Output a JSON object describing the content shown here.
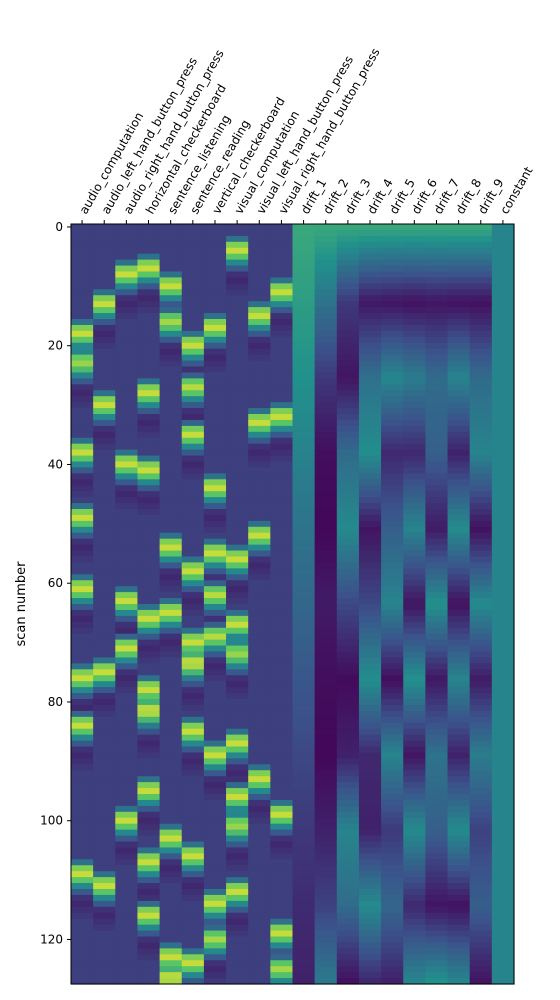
{
  "chart_data": {
    "type": "heatmap",
    "title": "",
    "xlabel": "",
    "ylabel": "scan number",
    "x_tick_position": "top",
    "x_tick_rotation_deg": 60,
    "colormap": "viridis",
    "colormap_stops": [
      "#440154",
      "#3b528b",
      "#21918c",
      "#5ec962",
      "#fde725"
    ],
    "grid": false,
    "n_scans": 128,
    "ylim": [
      -0.5,
      127.5
    ],
    "yticks": [
      0,
      20,
      40,
      60,
      80,
      100,
      120
    ],
    "task_value_range": [
      -0.1,
      1.0
    ],
    "columns": [
      "audio_computation",
      "audio_left_hand_button_press",
      "audio_right_hand_button_press",
      "horizontal_checkerboard",
      "sentence_listening",
      "sentence_reading",
      "vertical_checkerboard",
      "visual_computation",
      "visual_left_hand_button_press",
      "visual_right_hand_button_press",
      "drift_1",
      "drift_2",
      "drift_3",
      "drift_4",
      "drift_5",
      "drift_6",
      "drift_7",
      "drift_8",
      "drift_9",
      "constant"
    ],
    "task_events": [
      [
        17,
        22,
        37,
        48,
        60,
        75,
        83,
        108
      ],
      [
        12,
        29,
        74,
        110
      ],
      [
        7,
        39,
        62,
        70,
        99
      ],
      [
        6,
        27,
        40,
        65,
        77,
        81,
        94,
        106,
        115
      ],
      [
        9,
        15,
        53,
        64,
        102,
        122,
        126
      ],
      [
        19,
        26,
        34,
        57,
        69,
        73,
        84,
        105,
        123
      ],
      [
        16,
        43,
        54,
        61,
        68,
        88,
        113,
        119
      ],
      [
        3,
        55,
        66,
        71,
        86,
        95,
        100,
        111
      ],
      [
        14,
        32,
        51,
        92
      ],
      [
        10,
        31,
        98,
        118,
        124
      ]
    ],
    "drift_curves": [
      {
        "name": "drift_1",
        "values": [
          0.6,
          0.55,
          0.5,
          0.44,
          0.38,
          0.33,
          0.27,
          0.22,
          0.17,
          0.13,
          0.1
        ]
      },
      {
        "name": "drift_2",
        "values": [
          0.6,
          0.38,
          0.17,
          0.04,
          0.02,
          0.08,
          0.04,
          0.02,
          0.1,
          0.2,
          0.4
        ]
      },
      {
        "name": "drift_3",
        "values": [
          0.6,
          0.17,
          0.06,
          0.35,
          0.47,
          0.22,
          0.03,
          0.1,
          0.45,
          0.35,
          0.05
        ]
      },
      {
        "name": "drift_4",
        "values": [
          0.6,
          0.07,
          0.37,
          0.49,
          0.06,
          0.22,
          0.49,
          0.12,
          0.1,
          0.48,
          0.12
        ]
      },
      {
        "name": "drift_5",
        "values": [
          0.6,
          0.06,
          0.46,
          0.12,
          0.3,
          0.45,
          0.04,
          0.45,
          0.17,
          0.33,
          0.1
        ]
      },
      {
        "name": "drift_6",
        "values": [
          0.6,
          0.05,
          0.42,
          0.12,
          0.45,
          0.06,
          0.5,
          0.06,
          0.48,
          0.12,
          0.45
        ]
      },
      {
        "name": "drift_7",
        "values": [
          0.6,
          0.06,
          0.35,
          0.3,
          0.08,
          0.5,
          0.07,
          0.38,
          0.3,
          0.06,
          0.5
        ]
      },
      {
        "name": "drift_8",
        "values": [
          0.6,
          0.05,
          0.45,
          0.1,
          0.48,
          0.05,
          0.45,
          0.1,
          0.48,
          0.05,
          0.45
        ]
      },
      {
        "name": "drift_9",
        "values": [
          0.6,
          0.05,
          0.35,
          0.45,
          0.05,
          0.48,
          0.08,
          0.42,
          0.2,
          0.3,
          0.06
        ]
      },
      {
        "name": "constant",
        "values": [
          0.45,
          0.45
        ]
      }
    ]
  }
}
